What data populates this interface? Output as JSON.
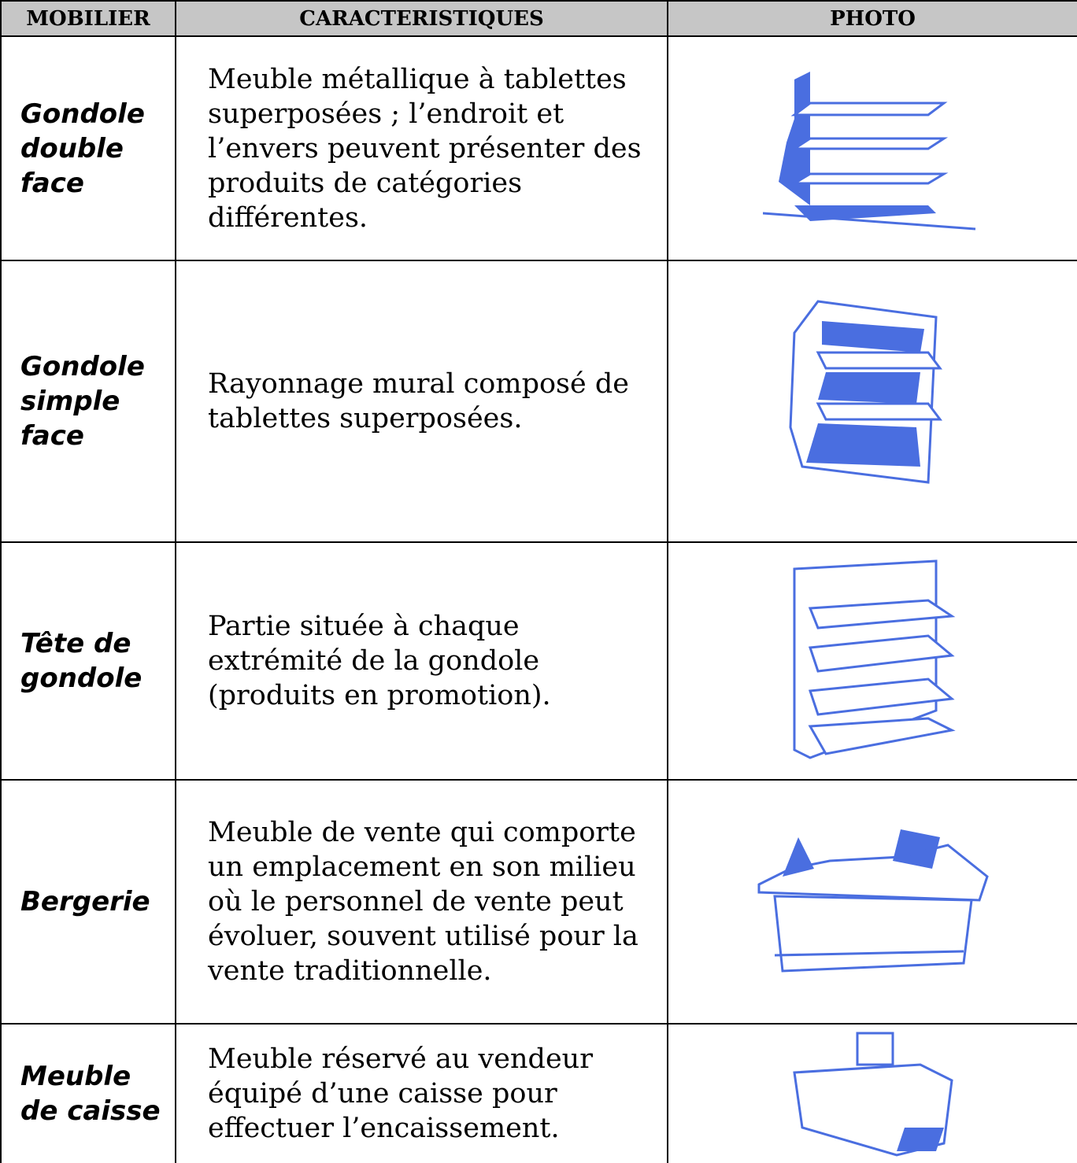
{
  "table": {
    "headers": [
      "MOBILIER",
      "CARACTERISTIQUES",
      "PHOTO"
    ],
    "rows": [
      [
        "Gondole double face",
        "Meuble métallique à tablettes superposées ; l’endroit et l’envers peuvent présenter des produits de catégories différentes."
      ],
      [
        "Gondole simple face",
        "Rayonnage mural composé de tablettes superposées."
      ],
      [
        "Tête de gondole",
        "Partie située à chaque extrémité de la gondole (produits en promotion)."
      ],
      [
        "Bergerie",
        "Meuble de vente qui comporte un emplacement en son milieu où le personnel de vente peut évoluer, souvent utilisé pour la vente traditionnelle."
      ],
      [
        "Meuble de caisse",
        "Meuble réservé au vendeur équipé d’une caisse pour effectuer l’encaissement."
      ]
    ]
  }
}
